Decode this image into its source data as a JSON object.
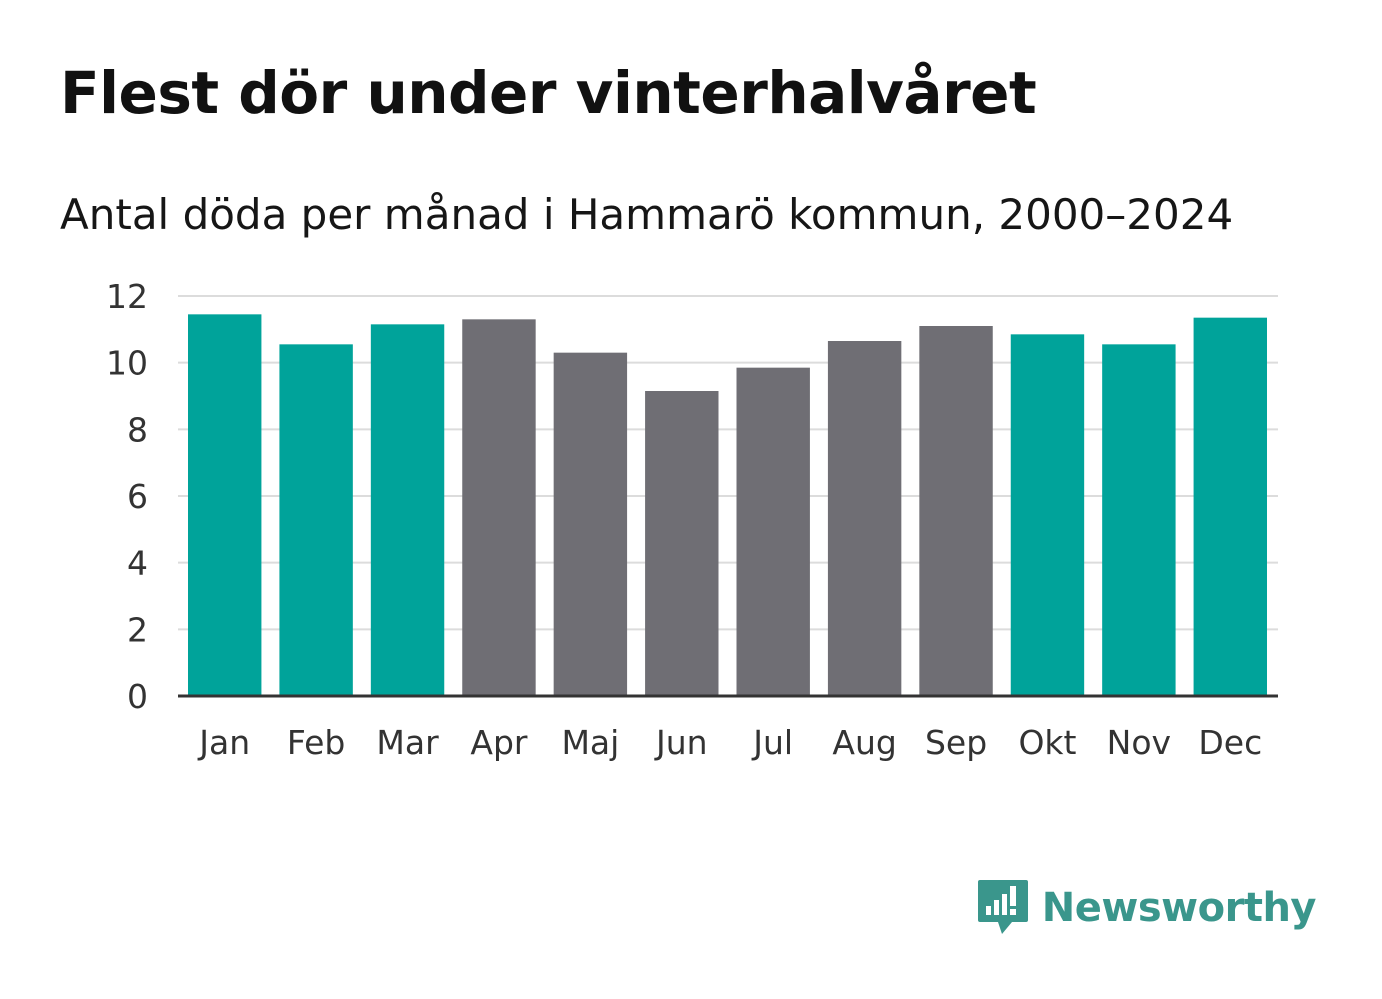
{
  "header": {
    "title": "Flest dör under vinterhalvåret",
    "subtitle": "Antal döda per månad i Hammarö kommun, 2000–2024"
  },
  "chart_data": {
    "type": "bar",
    "title": "Flest dör under vinterhalvåret",
    "subtitle": "Antal döda per månad i Hammarö kommun, 2000–2024",
    "xlabel": "",
    "ylabel": "",
    "ylim": [
      0,
      12
    ],
    "yticks": [
      0,
      2,
      4,
      6,
      8,
      10,
      12
    ],
    "grid": true,
    "categories": [
      "Jan",
      "Feb",
      "Mar",
      "Apr",
      "Maj",
      "Jun",
      "Jul",
      "Aug",
      "Sep",
      "Okt",
      "Nov",
      "Dec"
    ],
    "values": [
      11.45,
      10.55,
      11.15,
      11.3,
      10.3,
      9.15,
      9.85,
      10.65,
      11.1,
      10.85,
      10.55,
      11.35
    ],
    "highlight": [
      true,
      true,
      true,
      false,
      false,
      false,
      false,
      false,
      false,
      true,
      true,
      true
    ],
    "colors": {
      "highlight": "#00a39a",
      "default": "#6f6e74",
      "grid": "#dcdcdc",
      "axis": "#333333"
    }
  },
  "brand": {
    "name": "Newsworthy",
    "icon": "newsworthy-logo-icon",
    "color": "#3a968c"
  }
}
